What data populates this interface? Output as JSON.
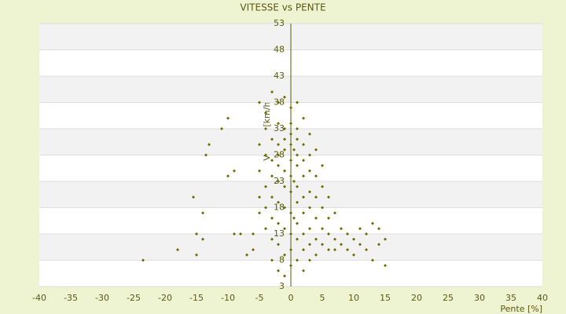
{
  "chart_data": {
    "type": "scatter",
    "title": "VITESSE vs PENTE",
    "x_label": "Pente [%]",
    "y_label": "Vitesse [km/h]",
    "color": "#6b6b00",
    "x": [
      -23.5,
      -18,
      -15,
      -14,
      -15,
      -15.5,
      -14,
      -13,
      -13.5,
      -11,
      -10,
      -10,
      -9,
      -9,
      -8,
      -7,
      -6,
      -6,
      -5,
      -5,
      -5,
      -5,
      -5,
      -4,
      -4,
      -4,
      -4,
      -4,
      -4,
      -3,
      -3,
      -3,
      -3,
      -3,
      -3,
      -3,
      -3,
      -2,
      -2,
      -2,
      -2,
      -2,
      -2,
      -2,
      -2,
      -2,
      -2,
      -1,
      -1,
      -1,
      -1,
      -1,
      -1,
      -1,
      -1,
      -1,
      -1,
      0,
      0,
      0,
      0,
      0,
      0,
      0,
      0,
      0,
      0,
      0,
      0.5,
      0.5,
      0.5,
      1,
      1,
      1,
      1,
      1,
      1,
      1,
      1,
      1,
      1,
      2,
      2,
      2,
      2,
      2,
      2,
      2,
      2,
      2,
      3,
      3,
      3,
      3,
      3,
      3,
      3,
      3,
      4,
      4,
      4,
      4,
      4,
      4,
      5,
      5,
      5,
      5,
      5,
      6,
      6,
      6,
      6,
      7,
      7,
      7,
      8,
      8,
      9,
      9,
      10,
      10,
      11,
      11,
      12,
      12,
      13,
      13,
      14,
      14,
      15,
      15
    ],
    "values": [
      8,
      10,
      9,
      12,
      13,
      20,
      17,
      30,
      28,
      33,
      35,
      24,
      25,
      13,
      13,
      9,
      10,
      13,
      38,
      30,
      25,
      20,
      17,
      36,
      33,
      28,
      22,
      18,
      14,
      40,
      31,
      27,
      24,
      20,
      16,
      12,
      8,
      38,
      34,
      30,
      28,
      26,
      23,
      19,
      15,
      11,
      6,
      39,
      33,
      31,
      29,
      25,
      22,
      18,
      14,
      9,
      5,
      37,
      34,
      32,
      30,
      27,
      24,
      21,
      17,
      13,
      10,
      7,
      29,
      23,
      16,
      38,
      33,
      31,
      28,
      26,
      22,
      19,
      15,
      12,
      8,
      35,
      30,
      27,
      24,
      20,
      17,
      13,
      10,
      6,
      32,
      28,
      25,
      21,
      18,
      14,
      11,
      8,
      29,
      24,
      20,
      16,
      12,
      9,
      26,
      22,
      18,
      14,
      11,
      20,
      16,
      13,
      10,
      17,
      12,
      10,
      14,
      11,
      13,
      10,
      12,
      9,
      14,
      11,
      13,
      10,
      15,
      8,
      14,
      11,
      12,
      7
    ],
    "xlim": [
      -40,
      40
    ],
    "xticks": [
      -40,
      -35,
      -30,
      -25,
      -20,
      -15,
      -10,
      -5,
      0,
      5,
      10,
      15,
      20,
      25,
      30,
      35,
      40
    ],
    "ylim": [
      3,
      53
    ],
    "yticks": [
      3,
      8,
      13,
      18,
      23,
      28,
      33,
      38,
      43,
      48,
      53
    ],
    "grid": true
  }
}
